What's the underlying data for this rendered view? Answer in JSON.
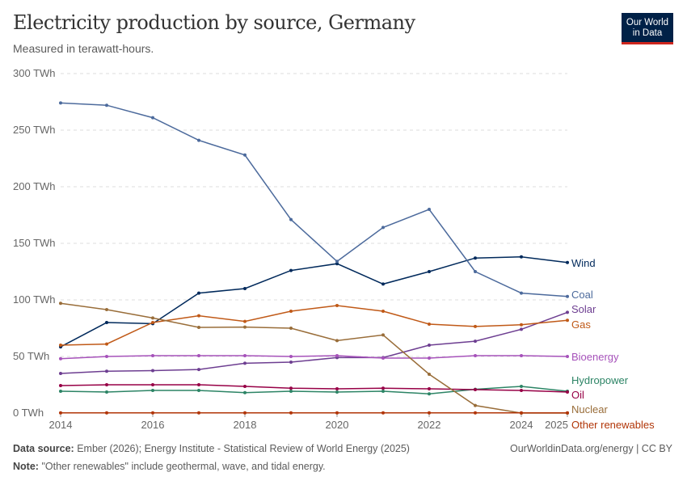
{
  "header": {
    "title": "Electricity production by source, Germany",
    "subtitle": "Measured in terawatt-hours.",
    "logo": "Our World in Data"
  },
  "footer": {
    "source_label": "Data source:",
    "source": "Ember (2026); Energy Institute - Statistical Review of World Energy (2025)",
    "url": "OurWorldinData.org/energy | CC BY",
    "note_label": "Note:",
    "note": "\"Other renewables\" include geothermal, wave, and tidal energy."
  },
  "chart_data": {
    "type": "line",
    "title": "Electricity production by source, Germany",
    "ylabel": "",
    "xlabel": "",
    "ylim": [
      0,
      300
    ],
    "xlim": [
      2014,
      2025
    ],
    "grid": "horizontal dashed",
    "legend": "right, inline labels",
    "yticks": [
      {
        "v": 0,
        "label": "0 TWh"
      },
      {
        "v": 50,
        "label": "50 TWh"
      },
      {
        "v": 100,
        "label": "100 TWh"
      },
      {
        "v": 150,
        "label": "150 TWh"
      },
      {
        "v": 200,
        "label": "200 TWh"
      },
      {
        "v": 250,
        "label": "250 TWh"
      },
      {
        "v": 300,
        "label": "300 TWh"
      }
    ],
    "xticks": [
      {
        "v": 2014,
        "label": "2014"
      },
      {
        "v": 2016,
        "label": "2016"
      },
      {
        "v": 2018,
        "label": "2018"
      },
      {
        "v": 2020,
        "label": "2020"
      },
      {
        "v": 2022,
        "label": "2022"
      },
      {
        "v": 2024,
        "label": "2024"
      },
      {
        "v": 2025,
        "label": "2025"
      }
    ],
    "x": [
      2014,
      2015,
      2016,
      2017,
      2018,
      2019,
      2020,
      2021,
      2022,
      2023,
      2024,
      2025
    ],
    "series": [
      {
        "name": "Wind",
        "color": "#00295b",
        "values": [
          58.5,
          80,
          79,
          106,
          110,
          126,
          132,
          114,
          125,
          137,
          138,
          133
        ]
      },
      {
        "name": "Coal",
        "color": "#4c6a9c",
        "values": [
          274,
          272,
          261,
          241,
          228,
          171,
          134,
          164,
          180,
          125,
          106,
          103
        ]
      },
      {
        "name": "Solar",
        "color": "#6d3e91",
        "values": [
          35,
          37,
          37.5,
          38.5,
          44,
          45,
          49,
          49,
          60,
          63.5,
          74,
          89
        ]
      },
      {
        "name": "Gas",
        "color": "#c05917",
        "values": [
          60,
          61,
          80,
          86,
          81,
          90,
          95,
          90,
          78.6,
          76.5,
          78,
          82
        ]
      },
      {
        "name": "Bioenergy",
        "color": "#a652ba",
        "values": [
          48,
          50,
          50.7,
          50.7,
          50.7,
          50,
          50.7,
          48.6,
          48.6,
          50.7,
          50.7,
          50
        ]
      },
      {
        "name": "Hydropower",
        "color": "#2c8465",
        "values": [
          19.3,
          18.6,
          20,
          20,
          18,
          19.3,
          18.6,
          19.3,
          17,
          21,
          23.6,
          19.3
        ]
      },
      {
        "name": "Oil",
        "color": "#970046",
        "values": [
          24.3,
          25,
          25,
          25,
          23.6,
          22,
          21.4,
          22,
          21.4,
          20.7,
          20,
          18.6
        ]
      },
      {
        "name": "Nuclear",
        "color": "#996d39",
        "values": [
          97,
          91.4,
          84,
          75.7,
          76,
          75,
          64,
          69,
          34.3,
          6.7,
          0,
          0
        ]
      },
      {
        "name": "Other renewables",
        "color": "#b13507",
        "values": [
          0.2,
          0.2,
          0.2,
          0.2,
          0.2,
          0.2,
          0.2,
          0.2,
          0.2,
          0.2,
          0.2,
          0.2
        ]
      }
    ]
  }
}
